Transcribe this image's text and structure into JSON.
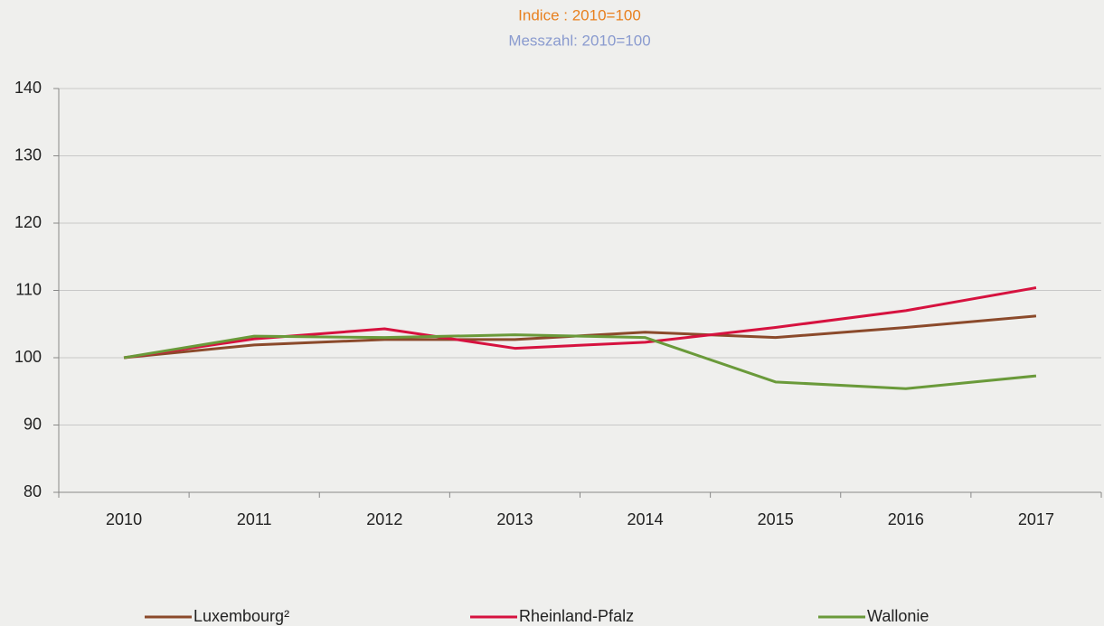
{
  "chart_data": {
    "type": "line",
    "title": "Indice : 2010=100",
    "subtitle": "Messzahl: 2010=100",
    "categories": [
      "2010",
      "2011",
      "2012",
      "2013",
      "2014",
      "2015",
      "2016",
      "2017"
    ],
    "series": [
      {
        "name": "Luxembourg²",
        "color": "#8b4a2b",
        "values": [
          100,
          101.9,
          102.7,
          102.7,
          103.8,
          103.0,
          104.5,
          106.2
        ]
      },
      {
        "name": "Rheinland-Pfalz",
        "color": "#d6123f",
        "values": [
          100,
          102.8,
          104.3,
          101.4,
          102.3,
          104.5,
          107.0,
          110.4
        ]
      },
      {
        "name": "Wallonie",
        "color": "#6a9a3a",
        "values": [
          100,
          103.2,
          103.0,
          103.4,
          103.0,
          96.4,
          95.4,
          97.3
        ]
      }
    ],
    "ylim": [
      80,
      140
    ],
    "yticks": [
      80,
      90,
      100,
      110,
      120,
      130,
      140
    ],
    "grid": true,
    "legend": "bottom"
  }
}
